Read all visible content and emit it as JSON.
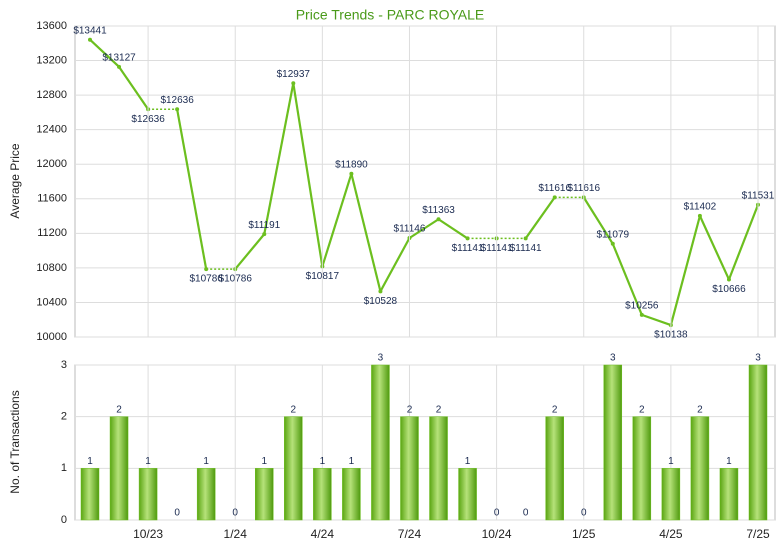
{
  "chart_data": [
    {
      "type": "line",
      "title": "Price Trends - PARC ROYALE",
      "y_label": "Average Price",
      "color": "#6cbf1f",
      "values": [
        13441,
        13127,
        12636,
        12636,
        10786,
        10786,
        11191,
        12937,
        10817,
        11890,
        10528,
        11146,
        11363,
        11141,
        11141,
        11141,
        11616,
        11616,
        11079,
        10256,
        10138,
        11402,
        10666,
        11531
      ],
      "value_labels": [
        "$13441",
        "$13127",
        "$12636",
        "$12636",
        "$10786",
        "$10786",
        "$11191",
        "$12937",
        "$10817",
        "$11890",
        "$10528",
        "$11146",
        "$11363",
        "$11141",
        "$11141",
        "$11141",
        "$11616",
        "$11616",
        "$11079",
        "$10256",
        "$10138",
        "$11402",
        "$10666",
        "$11531"
      ],
      "ylim": [
        10000,
        13600
      ],
      "yticks": [
        10000,
        10400,
        10800,
        11200,
        11600,
        12000,
        12400,
        12800,
        13200,
        13600
      ],
      "grid": true
    },
    {
      "type": "bar",
      "y_label": "No. of Transactions",
      "color": "#6cbf1f",
      "categories": [
        null,
        null,
        "10/23",
        null,
        null,
        "1/24",
        null,
        null,
        "4/24",
        null,
        null,
        "7/24",
        null,
        null,
        "10/24",
        null,
        null,
        "1/25",
        null,
        null,
        "4/25",
        null,
        null,
        "7/25"
      ],
      "values": [
        1,
        2,
        1,
        0,
        1,
        0,
        1,
        2,
        1,
        1,
        3,
        2,
        2,
        1,
        0,
        0,
        2,
        0,
        3,
        2,
        1,
        2,
        1,
        3
      ],
      "ylim": [
        0,
        3
      ],
      "yticks": [
        0,
        1,
        2,
        3
      ],
      "grid": true
    }
  ]
}
